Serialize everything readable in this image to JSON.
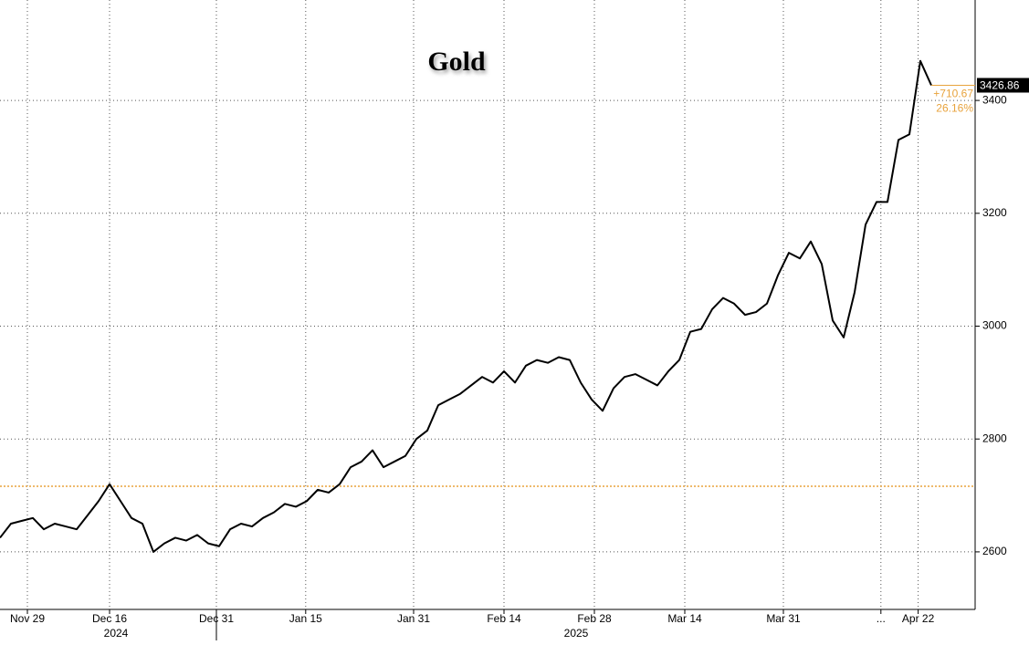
{
  "chart_data": {
    "type": "line",
    "title": "Gold",
    "series": [
      {
        "name": "Gold",
        "color": "#000000",
        "values": [
          2625,
          2650,
          2655,
          2660,
          2640,
          2650,
          2645,
          2640,
          2665,
          2690,
          2720,
          2690,
          2660,
          2650,
          2600,
          2615,
          2625,
          2620,
          2630,
          2615,
          2610,
          2640,
          2650,
          2645,
          2660,
          2670,
          2685,
          2680,
          2690,
          2710,
          2705,
          2720,
          2750,
          2760,
          2780,
          2750,
          2760,
          2770,
          2800,
          2815,
          2860,
          2870,
          2880,
          2895,
          2910,
          2900,
          2920,
          2900,
          2930,
          2940,
          2935,
          2945,
          2940,
          2900,
          2870,
          2850,
          2890,
          2910,
          2915,
          2905,
          2895,
          2920,
          2940,
          2990,
          2995,
          3030,
          3050,
          3040,
          3020,
          3025,
          3040,
          3090,
          3130,
          3120,
          3150,
          3110,
          3010,
          2980,
          3060,
          3180,
          3220,
          3220,
          3330,
          3340,
          3470,
          3426.86
        ]
      }
    ],
    "reference_line": 2716.19,
    "reference_color": "#e8a33d",
    "annotations": [
      "+710.67",
      "26.16%"
    ],
    "xlim": [
      0,
      89
    ],
    "xticks": [
      {
        "value": 2.5,
        "label": "Nov 29"
      },
      {
        "value": 10,
        "label": "Dec 16"
      },
      {
        "value": 19.75,
        "label": "Dec 31"
      },
      {
        "value": 27.9,
        "label": "Jan 15"
      },
      {
        "value": 37.75,
        "label": "Jan 31"
      },
      {
        "value": 46,
        "label": "Feb 14"
      },
      {
        "value": 54.25,
        "label": "Feb 28"
      },
      {
        "value": 62.5,
        "label": "Mar 14"
      },
      {
        "value": 71.5,
        "label": "Mar 31"
      },
      {
        "value": 80.4,
        "label": "..."
      },
      {
        "value": 83.8,
        "label": "Apr 22"
      }
    ],
    "xgroups": [
      {
        "value": 10,
        "label": "2024"
      },
      {
        "value": 52,
        "label": "2025"
      }
    ],
    "ylim": [
      2498,
      3578
    ],
    "yticks": [
      2600,
      2800,
      3000,
      3200,
      3400
    ],
    "grid": true
  }
}
